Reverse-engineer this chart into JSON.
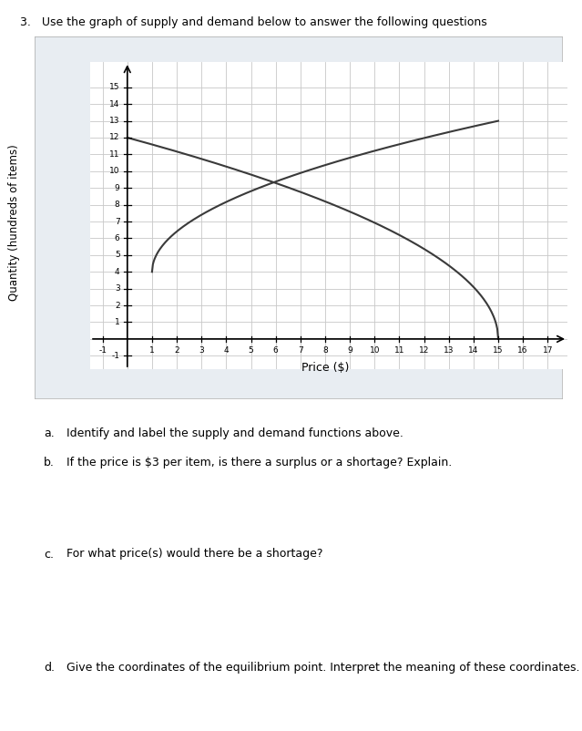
{
  "title": "3.   Use the graph of supply and demand below to answer the following questions",
  "xlabel": "Price ($)",
  "ylabel": "Quantity (hundreds of items)",
  "xlim": [
    -1.5,
    17.8
  ],
  "ylim": [
    -1.8,
    16.5
  ],
  "x_ticks": [
    -1,
    1,
    2,
    3,
    4,
    5,
    6,
    7,
    8,
    9,
    10,
    11,
    12,
    13,
    14,
    15,
    16,
    17
  ],
  "y_ticks": [
    -1,
    1,
    2,
    3,
    4,
    5,
    6,
    7,
    8,
    9,
    10,
    11,
    12,
    13,
    14,
    15
  ],
  "line_color": "#3a3a3a",
  "grid_color": "#c8c8c8",
  "bg_color": "#e8edf2",
  "box_bg": "#ffffff",
  "questions_a": "Identify and label the supply and demand functions above.",
  "questions_b": "If the price is $3 per item, is there a surplus or a shortage? Explain.",
  "questions_c": "For what price(s) would there be a shortage?",
  "questions_d": "Give the coordinates of the equilibrium point. Interpret the meaning of these coordinates.",
  "fig_width": 6.39,
  "fig_height": 8.02,
  "supply_x_start": 1,
  "supply_x_end": 15,
  "supply_coeff": 3.464,
  "demand_x_start": 0,
  "demand_x_end": 15
}
